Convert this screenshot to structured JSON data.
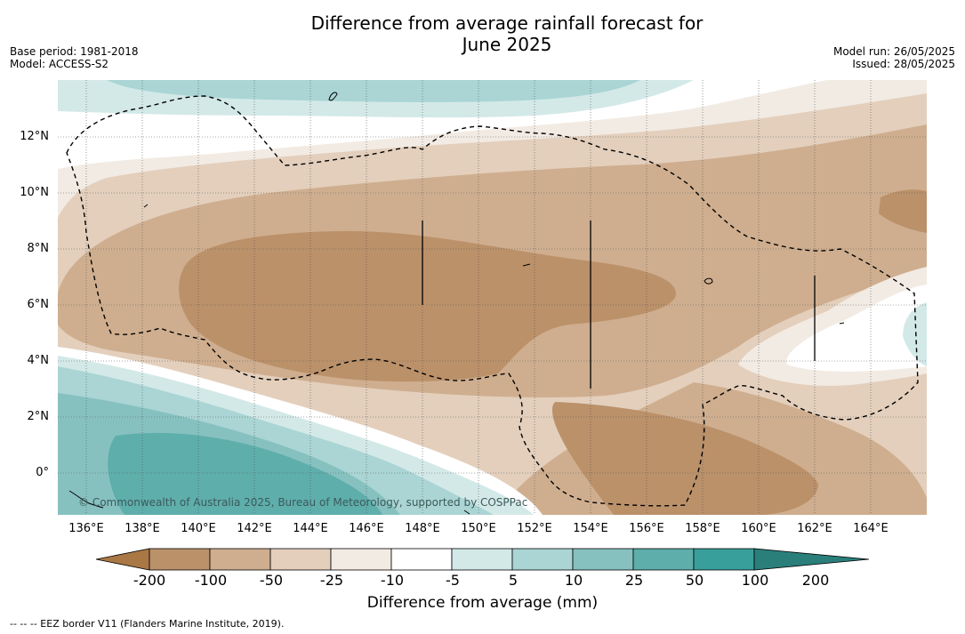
{
  "title_line1": "Difference from average rainfall forecast for",
  "title_line2": "June 2025",
  "meta_left": {
    "base_period": "Base period: 1981-2018",
    "model": "Model: ACCESS-S2"
  },
  "meta_right": {
    "model_run": "Model run: 26/05/2025",
    "issued": "Issued: 28/05/2025"
  },
  "map": {
    "lon_range": [
      135,
      166
    ],
    "lat_range": [
      -1.5,
      14
    ],
    "x_ticks": [
      "136°E",
      "138°E",
      "140°E",
      "142°E",
      "144°E",
      "146°E",
      "148°E",
      "150°E",
      "152°E",
      "154°E",
      "156°E",
      "158°E",
      "160°E",
      "162°E",
      "164°E"
    ],
    "y_ticks": [
      "0°",
      "2°N",
      "4°N",
      "6°N",
      "8°N",
      "10°N",
      "12°N"
    ],
    "gridlines": true,
    "copyright": "© Commonwealth of Australia 2025, Bureau of Meteorology, supported by COSPPac"
  },
  "colorbar": {
    "label": "Difference from average (mm)",
    "ticks": [
      "-200",
      "-100",
      "-50",
      "-25",
      "-10",
      "-5",
      "5",
      "10",
      "25",
      "50",
      "100",
      "200"
    ],
    "colors": [
      "#a97844",
      "#bb916a",
      "#cfae8f",
      "#e3cfbc",
      "#f2ebe4",
      "#ffffff",
      "#d3e9e8",
      "#aad5d4",
      "#86c1c0",
      "#5eaeac",
      "#389f9b",
      "#2a7f7b"
    ]
  },
  "footnote": "--  --  -- EEZ border V11 (Flanders Marine Institute, 2019)."
}
